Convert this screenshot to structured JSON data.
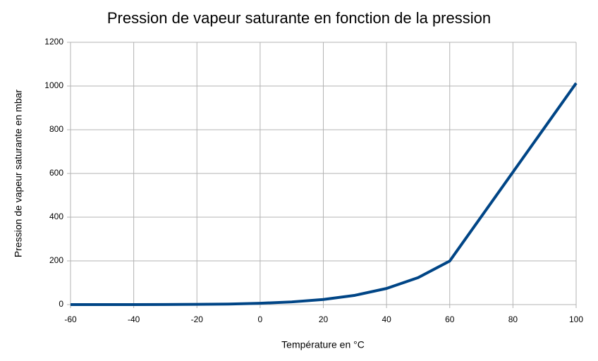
{
  "chart_data": {
    "type": "line",
    "title": "Pression de vapeur saturante en fonction de la pression",
    "x_label": "Température en °C",
    "y_label": "Pression de vapeur saturante en mbar",
    "x": [
      -60,
      -50,
      -40,
      -30,
      -20,
      -10,
      0,
      10,
      20,
      30,
      40,
      50,
      60,
      100
    ],
    "series": [
      {
        "name": "Pression de vapeur saturante",
        "color": "#004586",
        "values": [
          0.01,
          0.04,
          0.13,
          0.38,
          1.03,
          2.6,
          6.1,
          12.3,
          23.4,
          42.4,
          73.8,
          123.4,
          199.3,
          1013
        ]
      }
    ],
    "xlim": [
      -60,
      100
    ],
    "xticks": [
      -60,
      -40,
      -20,
      0,
      20,
      40,
      60,
      80,
      100
    ],
    "ylim": [
      0,
      1200
    ],
    "yticks": [
      0,
      200,
      400,
      600,
      800,
      1000,
      1200
    ],
    "grid": true
  }
}
